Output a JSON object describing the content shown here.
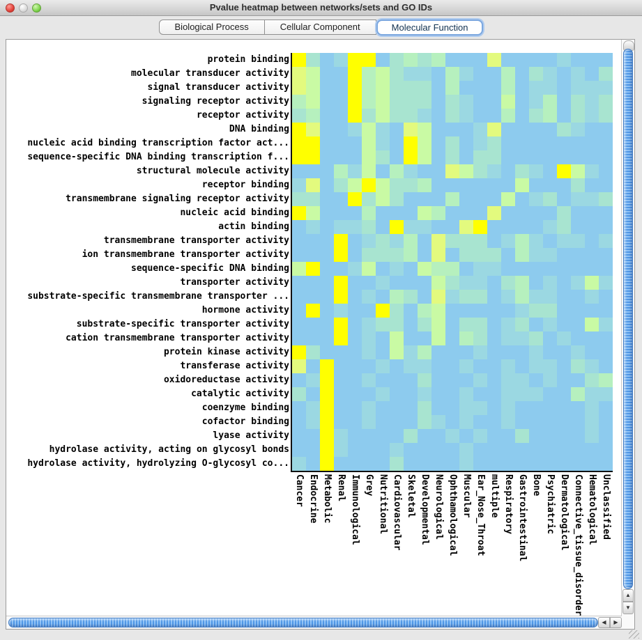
{
  "window": {
    "title": "Pvalue heatmap between networks/sets and GO IDs"
  },
  "tabs": [
    {
      "label": "Biological Process",
      "selected": false
    },
    {
      "label": "Cellular Component",
      "selected": false
    },
    {
      "label": "Molecular Function",
      "selected": true
    }
  ],
  "icons": {
    "scroll_up": "▲",
    "scroll_down": "▼",
    "scroll_left": "◀",
    "scroll_right": "▶"
  },
  "chart_data": {
    "type": "heatmap",
    "title": "Pvalue heatmap between networks/sets and GO IDs",
    "rows": [
      "protein binding",
      "molecular transducer activity",
      "signal transducer activity",
      "signaling receptor activity",
      "receptor activity",
      "DNA binding",
      "nucleic acid binding transcription factor act...",
      "sequence-specific DNA binding transcription f...",
      "structural molecule activity",
      "receptor binding",
      "transmembrane signaling receptor activity",
      "nucleic acid binding",
      "actin binding",
      "transmembrane transporter activity",
      "ion transmembrane transporter activity",
      "sequence-specific DNA binding",
      "transporter activity",
      "substrate-specific transmembrane transporter ...",
      "hormone activity",
      "substrate-specific transporter activity",
      "cation transmembrane transporter activity",
      "protein kinase activity",
      "transferase activity",
      "oxidoreductase activity",
      "catalytic activity",
      "coenzyme binding",
      "cofactor binding",
      "lyase activity",
      "hydrolase activity, acting on glycosyl bonds",
      "hydrolase activity, hydrolyzing O-glycosyl co..."
    ],
    "columns": [
      "Cancer",
      "Endocrine",
      "Metabolic",
      "Renal",
      "Immunological",
      "Grey",
      "Nutritional",
      "Cardiovascular",
      "Skeletal",
      "Developmental",
      "Neurological",
      "Ophthamological",
      "Muscular",
      "Ear_Nose_Throat",
      "multiple",
      "Respiratory",
      "Gastrointestinal",
      "Bone",
      "Psychiatric",
      "Dermatological",
      "Connective_tissue_disorder",
      "Hematological",
      "Unclassified"
    ],
    "palette": [
      "#8DCBEE",
      "#9BD8E2",
      "#A8E4D0",
      "#B6F0BE",
      "#C9FAA4",
      "#E3FA7E",
      "#FFFF00"
    ],
    "palette_note": "0 = light blue (weakest) ... 6 = bright yellow (strongest)",
    "values": [
      [
        6,
        2,
        0,
        1,
        6,
        6,
        0,
        2,
        3,
        2,
        3,
        0,
        0,
        0,
        5,
        0,
        0,
        0,
        0,
        1,
        0,
        0,
        0
      ],
      [
        5,
        4,
        0,
        0,
        6,
        3,
        4,
        2,
        1,
        1,
        0,
        3,
        1,
        0,
        0,
        3,
        0,
        2,
        1,
        0,
        1,
        0,
        2
      ],
      [
        5,
        4,
        0,
        0,
        6,
        3,
        4,
        2,
        2,
        2,
        0,
        3,
        0,
        0,
        0,
        3,
        0,
        1,
        1,
        0,
        1,
        1,
        1
      ],
      [
        3,
        4,
        0,
        0,
        6,
        3,
        4,
        2,
        2,
        2,
        0,
        2,
        1,
        0,
        0,
        4,
        0,
        1,
        3,
        0,
        2,
        1,
        2
      ],
      [
        2,
        3,
        0,
        0,
        6,
        2,
        4,
        2,
        2,
        1,
        0,
        2,
        1,
        0,
        0,
        3,
        0,
        2,
        3,
        0,
        2,
        1,
        2
      ],
      [
        6,
        5,
        0,
        0,
        1,
        4,
        1,
        0,
        5,
        4,
        0,
        0,
        0,
        1,
        5,
        0,
        0,
        0,
        0,
        2,
        1,
        0,
        0
      ],
      [
        6,
        6,
        0,
        0,
        0,
        4,
        1,
        0,
        6,
        4,
        0,
        2,
        0,
        1,
        2,
        0,
        0,
        0,
        0,
        0,
        0,
        0,
        0
      ],
      [
        6,
        6,
        0,
        0,
        0,
        4,
        2,
        0,
        6,
        4,
        0,
        2,
        0,
        2,
        2,
        0,
        0,
        0,
        0,
        0,
        0,
        0,
        0
      ],
      [
        0,
        0,
        0,
        3,
        1,
        4,
        0,
        3,
        1,
        0,
        0,
        5,
        4,
        2,
        1,
        0,
        2,
        1,
        0,
        6,
        4,
        1,
        0
      ],
      [
        1,
        5,
        0,
        2,
        4,
        6,
        4,
        2,
        2,
        3,
        0,
        0,
        0,
        0,
        0,
        0,
        4,
        0,
        0,
        0,
        2,
        0,
        0
      ],
      [
        2,
        2,
        0,
        0,
        6,
        2,
        4,
        2,
        0,
        0,
        0,
        3,
        0,
        0,
        0,
        4,
        0,
        1,
        2,
        0,
        1,
        1,
        2
      ],
      [
        6,
        4,
        0,
        0,
        0,
        3,
        0,
        0,
        0,
        4,
        3,
        0,
        0,
        0,
        5,
        0,
        0,
        0,
        0,
        2,
        0,
        0,
        0
      ],
      [
        0,
        1,
        0,
        1,
        1,
        2,
        0,
        6,
        1,
        1,
        0,
        0,
        5,
        6,
        0,
        0,
        0,
        0,
        1,
        2,
        0,
        0,
        0
      ],
      [
        0,
        0,
        0,
        6,
        0,
        1,
        2,
        1,
        3,
        0,
        5,
        2,
        2,
        2,
        0,
        1,
        3,
        1,
        0,
        1,
        1,
        0,
        1
      ],
      [
        0,
        0,
        0,
        6,
        0,
        2,
        2,
        2,
        3,
        0,
        5,
        0,
        2,
        2,
        2,
        0,
        3,
        1,
        1,
        0,
        0,
        0,
        0
      ],
      [
        4,
        6,
        0,
        0,
        1,
        4,
        0,
        1,
        0,
        4,
        3,
        3,
        0,
        1,
        1,
        0,
        0,
        0,
        0,
        0,
        0,
        0,
        0
      ],
      [
        0,
        0,
        0,
        6,
        0,
        0,
        1,
        0,
        0,
        0,
        4,
        2,
        1,
        1,
        0,
        2,
        3,
        0,
        1,
        0,
        1,
        4,
        1
      ],
      [
        0,
        0,
        0,
        6,
        0,
        1,
        0,
        3,
        2,
        0,
        5,
        1,
        2,
        2,
        0,
        1,
        3,
        1,
        1,
        0,
        0,
        1,
        0
      ],
      [
        0,
        6,
        0,
        1,
        0,
        0,
        6,
        2,
        0,
        3,
        4,
        0,
        0,
        0,
        0,
        0,
        1,
        2,
        2,
        0,
        0,
        0,
        0
      ],
      [
        0,
        0,
        0,
        6,
        0,
        1,
        2,
        2,
        0,
        2,
        4,
        0,
        2,
        2,
        0,
        1,
        2,
        0,
        1,
        0,
        0,
        4,
        1
      ],
      [
        0,
        0,
        0,
        6,
        0,
        1,
        0,
        4,
        0,
        0,
        4,
        0,
        3,
        2,
        0,
        1,
        1,
        2,
        0,
        1,
        0,
        0,
        0
      ],
      [
        6,
        2,
        0,
        0,
        0,
        1,
        0,
        4,
        1,
        3,
        0,
        0,
        0,
        1,
        0,
        0,
        0,
        1,
        0,
        0,
        1,
        0,
        0
      ],
      [
        5,
        0,
        6,
        0,
        0,
        0,
        1,
        0,
        1,
        1,
        0,
        0,
        1,
        0,
        0,
        1,
        0,
        1,
        1,
        0,
        2,
        1,
        0
      ],
      [
        0,
        1,
        6,
        0,
        0,
        1,
        0,
        0,
        0,
        2,
        0,
        0,
        0,
        1,
        0,
        1,
        1,
        0,
        1,
        0,
        0,
        2,
        3
      ],
      [
        2,
        0,
        6,
        0,
        0,
        0,
        1,
        0,
        0,
        1,
        0,
        0,
        1,
        0,
        0,
        1,
        1,
        1,
        0,
        0,
        3,
        1,
        1
      ],
      [
        0,
        1,
        6,
        0,
        0,
        1,
        0,
        0,
        0,
        2,
        0,
        0,
        1,
        1,
        0,
        1,
        0,
        0,
        0,
        0,
        0,
        1,
        0
      ],
      [
        0,
        1,
        6,
        0,
        0,
        1,
        0,
        0,
        0,
        2,
        1,
        0,
        1,
        0,
        0,
        1,
        0,
        0,
        0,
        0,
        0,
        1,
        0
      ],
      [
        0,
        0,
        6,
        1,
        0,
        0,
        0,
        0,
        2,
        0,
        0,
        1,
        0,
        1,
        0,
        0,
        2,
        0,
        0,
        0,
        0,
        1,
        0
      ],
      [
        0,
        0,
        6,
        1,
        0,
        0,
        0,
        1,
        0,
        0,
        0,
        0,
        1,
        0,
        0,
        0,
        0,
        0,
        0,
        0,
        0,
        0,
        0
      ],
      [
        1,
        0,
        6,
        0,
        0,
        0,
        0,
        2,
        0,
        0,
        0,
        0,
        1,
        0,
        0,
        0,
        0,
        0,
        0,
        0,
        0,
        0,
        0
      ]
    ]
  }
}
